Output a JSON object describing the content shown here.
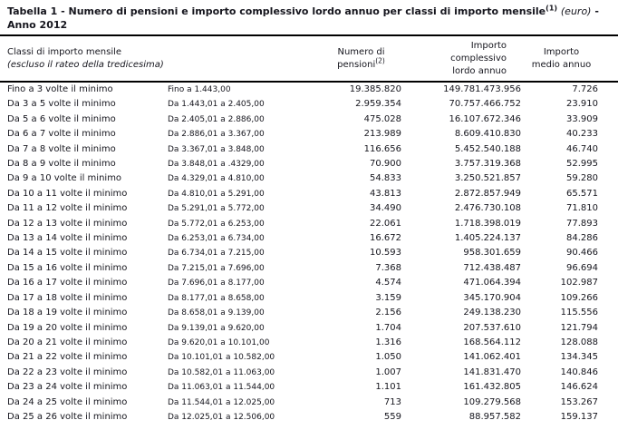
{
  "title": {
    "main": "Tabella 1 - Numero di pensioni e importo complessivo lordo annuo per classi di importo mensile",
    "footnote_marker": "(1)",
    "unit": "(euro)",
    "dash": "-",
    "line2": "Anno 2012"
  },
  "table": {
    "header": {
      "col_classi_line1": "Classi di importo mensile",
      "col_classi_line2": "(escluso il rateo della tredicesima)",
      "col_numero_line1": "Numero di",
      "col_numero_line2": "pensioni",
      "col_numero_footnote": "(2)",
      "col_lordo_line1": "Importo",
      "col_lordo_line2": "complessivo",
      "col_lordo_line3": "lordo annuo",
      "col_medio_line1": "Importo",
      "col_medio_line2": "medio annuo"
    },
    "rows": [
      {
        "classe": "Fino a 3 volte il minimo",
        "intervallo": "Fino a 1.443,00",
        "numero": "19.385.820",
        "lordo": "149.781.473.956",
        "medio": "7.726"
      },
      {
        "classe": "Da 3 a 5 volte il minimo",
        "intervallo": "Da 1.443,01 a 2.405,00",
        "numero": "2.959.354",
        "lordo": "70.757.466.752",
        "medio": "23.910"
      },
      {
        "classe": "Da 5 a 6 volte il minimo",
        "intervallo": "Da 2.405,01 a 2.886,00",
        "numero": "475.028",
        "lordo": "16.107.672.346",
        "medio": "33.909"
      },
      {
        "classe": "Da 6 a 7 volte il minimo",
        "intervallo": "Da 2.886,01 a 3.367,00",
        "numero": "213.989",
        "lordo": "8.609.410.830",
        "medio": "40.233"
      },
      {
        "classe": "Da 7 a 8 volte il minimo",
        "intervallo": "Da 3.367,01 a 3.848,00",
        "numero": "116.656",
        "lordo": "5.452.540.188",
        "medio": "46.740"
      },
      {
        "classe": "Da 8 a 9 volte il minimo",
        "intervallo": "Da 3.848,01 a .4329,00",
        "numero": "70.900",
        "lordo": "3.757.319.368",
        "medio": "52.995"
      },
      {
        "classe": "Da 9 a 10 volte il minimo",
        "intervallo": "Da 4.329,01 a 4.810,00",
        "numero": "54.833",
        "lordo": "3.250.521.857",
        "medio": "59.280"
      },
      {
        "classe": "Da 10 a 11 volte il minimo",
        "intervallo": "Da 4.810,01 a 5.291,00",
        "numero": "43.813",
        "lordo": "2.872.857.949",
        "medio": "65.571"
      },
      {
        "classe": "Da 11 a 12 volte il minimo",
        "intervallo": "Da 5.291,01 a 5.772,00",
        "numero": "34.490",
        "lordo": "2.476.730.108",
        "medio": "71.810"
      },
      {
        "classe": "Da 12 a 13 volte il minimo",
        "intervallo": "Da 5.772,01 a 6.253,00",
        "numero": "22.061",
        "lordo": "1.718.398.019",
        "medio": "77.893"
      },
      {
        "classe": "Da 13 a 14 volte il minimo",
        "intervallo": "Da 6.253,01 a 6.734,00",
        "numero": "16.672",
        "lordo": "1.405.224.137",
        "medio": "84.286"
      },
      {
        "classe": "Da 14 a 15 volte il minimo",
        "intervallo": "Da 6.734,01 a 7.215,00",
        "numero": "10.593",
        "lordo": "958.301.659",
        "medio": "90.466"
      },
      {
        "classe": "Da 15 a 16 volte il minimo",
        "intervallo": "Da 7.215,01 a 7.696,00",
        "numero": "7.368",
        "lordo": "712.438.487",
        "medio": "96.694"
      },
      {
        "classe": "Da 16 a 17 volte il minimo",
        "intervallo": "Da 7.696,01 a 8.177,00",
        "numero": "4.574",
        "lordo": "471.064.394",
        "medio": "102.987"
      },
      {
        "classe": "Da 17 a 18 volte il minimo",
        "intervallo": "Da 8.177,01 a 8.658,00",
        "numero": "3.159",
        "lordo": "345.170.904",
        "medio": "109.266"
      },
      {
        "classe": "Da 18 a 19 volte il minimo",
        "intervallo": "Da 8.658,01 a 9.139,00",
        "numero": "2.156",
        "lordo": "249.138.230",
        "medio": "115.556"
      },
      {
        "classe": "Da 19 a 20 volte il minimo",
        "intervallo": "Da 9.139,01 a 9.620,00",
        "numero": "1.704",
        "lordo": "207.537.610",
        "medio": "121.794"
      },
      {
        "classe": "Da 20 a 21 volte il minimo",
        "intervallo": "Da 9.620,01 a 10.101,00",
        "numero": "1.316",
        "lordo": "168.564.112",
        "medio": "128.088"
      },
      {
        "classe": "Da 21 a 22 volte il minimo",
        "intervallo": "Da 10.101,01 a 10.582,00",
        "numero": "1.050",
        "lordo": "141.062.401",
        "medio": "134.345"
      },
      {
        "classe": "Da 22 a 23 volte il minimo",
        "intervallo": "Da 10.582,01 a 11.063,00",
        "numero": "1.007",
        "lordo": "141.831.470",
        "medio": "140.846"
      },
      {
        "classe": "Da 23 a 24 volte il minimo",
        "intervallo": "Da 11.063,01 a 11.544,00",
        "numero": "1.101",
        "lordo": "161.432.805",
        "medio": "146.624"
      },
      {
        "classe": "Da 24 a 25 volte il minimo",
        "intervallo": "Da 11.544,01 a 12.025,00",
        "numero": "713",
        "lordo": "109.279.568",
        "medio": "153.267"
      },
      {
        "classe": "Da 25 a 26 volte il minimo",
        "intervallo": "Da 12.025,01 a 12.506,00",
        "numero": "559",
        "lordo": "88.957.582",
        "medio": "159.137"
      }
    ]
  }
}
